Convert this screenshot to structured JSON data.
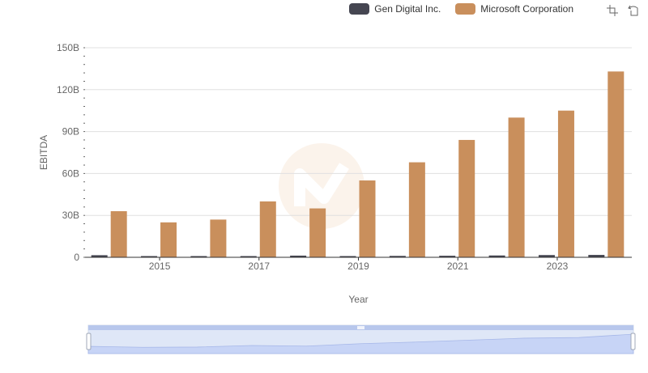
{
  "legend": [
    {
      "name": "Gen Digital Inc.",
      "color": "#454651"
    },
    {
      "name": "Microsoft Corporation",
      "color": "#c98f5c"
    }
  ],
  "toolbox": [
    {
      "name": "zoom-icon"
    },
    {
      "name": "zoom-reset-icon"
    }
  ],
  "chart_data": {
    "type": "bar",
    "title": "",
    "xlabel": "Year",
    "ylabel": "EBITDA",
    "ylim": [
      0,
      150
    ],
    "y_ticks": [
      "0",
      "30B",
      "60B",
      "90B",
      "120B",
      "150B"
    ],
    "categories": [
      "2014",
      "2015",
      "2016",
      "2017",
      "2018",
      "2019",
      "2020",
      "2021",
      "2022",
      "2023",
      "2024"
    ],
    "x_tick_labels": [
      "2015",
      "2017",
      "2019",
      "2021",
      "2023"
    ],
    "series": [
      {
        "name": "Gen Digital Inc.",
        "color": "#454651",
        "values": [
          1.5,
          0.5,
          0.8,
          0.4,
          1.2,
          0.3,
          1.0,
          1.1,
          1.3,
          1.6,
          1.7
        ]
      },
      {
        "name": "Microsoft Corporation",
        "color": "#c98f5c",
        "values": [
          33,
          25,
          27,
          40,
          35,
          55,
          68,
          84,
          100,
          105,
          133
        ]
      }
    ],
    "grid": true,
    "legend_position": "top-right",
    "data_zoom": {
      "start": 0,
      "end": 100
    }
  }
}
